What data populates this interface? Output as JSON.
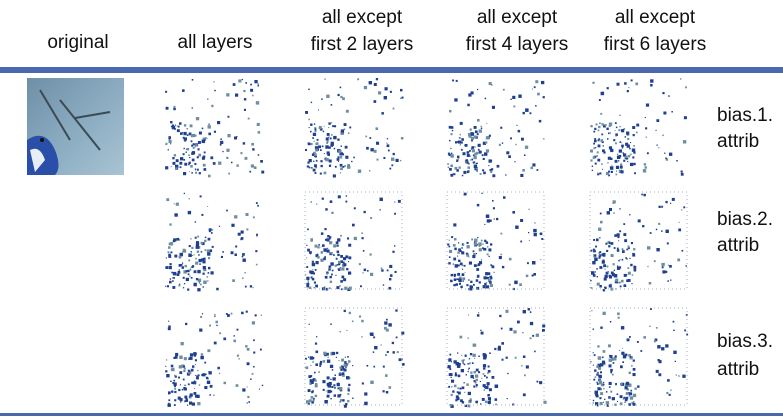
{
  "columns": [
    [
      "original"
    ],
    [
      "all layers"
    ],
    [
      "all except",
      "first 2 layers"
    ],
    [
      "all except",
      "first 4 layers"
    ],
    [
      "all except",
      "first 6 layers"
    ]
  ],
  "rows": [
    [
      "bias.1.",
      "attrib"
    ],
    [
      "bias.2.",
      "attrib"
    ],
    [
      "bias.3.",
      "attrib"
    ]
  ]
}
